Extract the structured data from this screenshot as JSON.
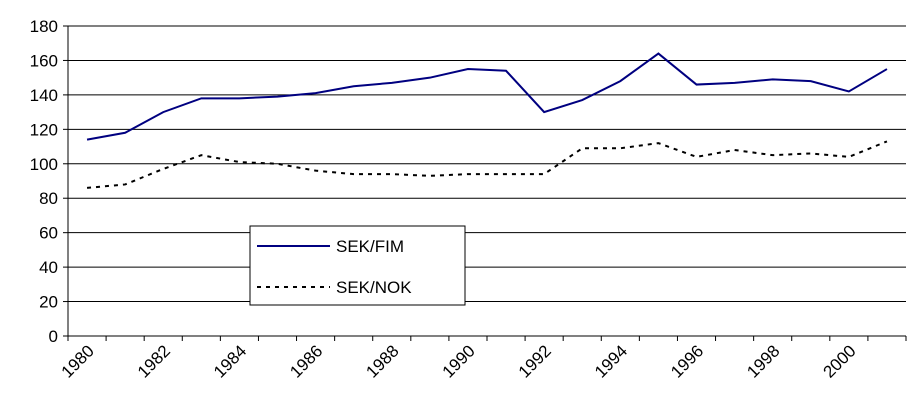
{
  "chart_data": {
    "type": "line",
    "categories": [
      "1980",
      null,
      "1982",
      null,
      "1984",
      null,
      "1986",
      null,
      "1988",
      null,
      "1990",
      null,
      "1992",
      null,
      "1994",
      null,
      "1996",
      null,
      "1998",
      null,
      "2000",
      null
    ],
    "series": [
      {
        "name": "SEK/FIM",
        "color": "#000080",
        "dash": "solid",
        "values": [
          114,
          118,
          130,
          138,
          138,
          139,
          141,
          145,
          147,
          150,
          155,
          154,
          130,
          137,
          148,
          164,
          146,
          147,
          149,
          148,
          142,
          155
        ]
      },
      {
        "name": "SEK/NOK",
        "color": "#000000",
        "dash": "dotted",
        "values": [
          86,
          88,
          97,
          105,
          101,
          100,
          96,
          94,
          94,
          93,
          94,
          94,
          94,
          109,
          109,
          112,
          104,
          108,
          105,
          106,
          104,
          113
        ]
      }
    ],
    "ylim": [
      0,
      180
    ],
    "yticks": [
      0,
      20,
      40,
      60,
      80,
      100,
      120,
      140,
      160,
      180
    ],
    "grid": true
  }
}
